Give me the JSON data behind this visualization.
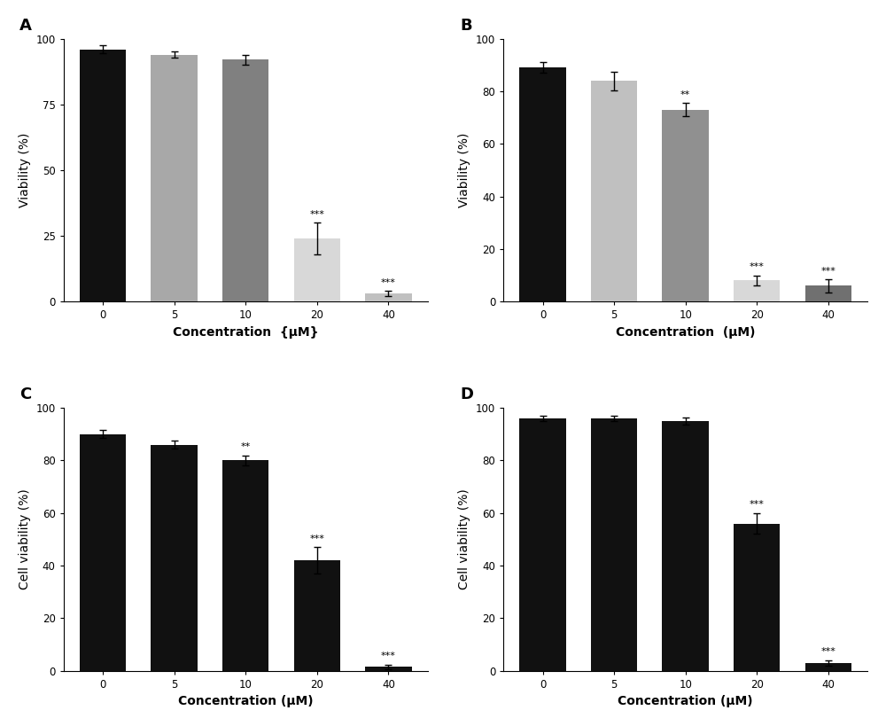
{
  "panels": [
    {
      "label": "A",
      "ylabel": "Viability (%)",
      "xlabel": "Concentration  {μM}",
      "values": [
        96,
        94,
        92,
        24,
        3
      ],
      "errors": [
        1.5,
        1.2,
        2.0,
        6.0,
        1.0
      ],
      "colors": [
        "#111111",
        "#a8a8a8",
        "#808080",
        "#d8d8d8",
        "#c0c0c0"
      ],
      "significance": [
        "",
        "",
        "",
        "***",
        "***"
      ],
      "categories": [
        "0",
        "5",
        "10",
        "20",
        "40"
      ],
      "ylim": [
        0,
        100
      ],
      "yticks": [
        0,
        25,
        50,
        75,
        100
      ]
    },
    {
      "label": "B",
      "ylabel": "Viability (%)",
      "xlabel": "Concentration  (μM)",
      "values": [
        89,
        84,
        73,
        8,
        6
      ],
      "errors": [
        2.0,
        3.5,
        2.5,
        2.0,
        2.5
      ],
      "colors": [
        "#111111",
        "#c0c0c0",
        "#909090",
        "#d8d8d8",
        "#707070"
      ],
      "significance": [
        "",
        "",
        "**",
        "***",
        "***"
      ],
      "categories": [
        "0",
        "5",
        "10",
        "20",
        "40"
      ],
      "ylim": [
        0,
        100
      ],
      "yticks": [
        0,
        20,
        40,
        60,
        80,
        100
      ]
    },
    {
      "label": "C",
      "ylabel": "Cell viability (%)",
      "xlabel": "Concentration (μM)",
      "values": [
        90,
        86,
        80,
        42,
        1.5
      ],
      "errors": [
        1.5,
        1.5,
        2.0,
        5.0,
        0.8
      ],
      "colors": [
        "#111111",
        "#111111",
        "#111111",
        "#111111",
        "#111111"
      ],
      "significance": [
        "",
        "",
        "**",
        "***",
        "***"
      ],
      "categories": [
        "0",
        "5",
        "10",
        "20",
        "40"
      ],
      "ylim": [
        0,
        100
      ],
      "yticks": [
        0,
        20,
        40,
        60,
        80,
        100
      ]
    },
    {
      "label": "D",
      "ylabel": "Cell viability (%)",
      "xlabel": "Concentration (μM)",
      "values": [
        96,
        96,
        95,
        56,
        3
      ],
      "errors": [
        1.0,
        1.0,
        1.5,
        4.0,
        1.0
      ],
      "colors": [
        "#111111",
        "#111111",
        "#111111",
        "#111111",
        "#111111"
      ],
      "significance": [
        "",
        "",
        "",
        "***",
        "***"
      ],
      "categories": [
        "0",
        "5",
        "10",
        "20",
        "40"
      ],
      "ylim": [
        0,
        100
      ],
      "yticks": [
        0,
        20,
        40,
        60,
        80,
        100
      ]
    }
  ],
  "background_color": "#ffffff",
  "bar_width": 0.65,
  "sig_fontsize": 8,
  "label_fontsize": 10,
  "tick_fontsize": 8.5,
  "panel_label_fontsize": 13
}
